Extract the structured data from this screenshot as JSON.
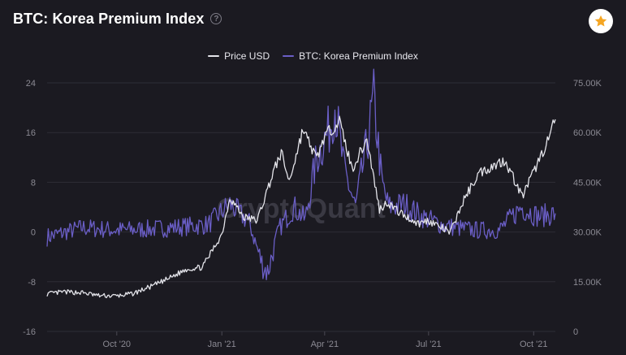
{
  "header": {
    "title": "BTC: Korea Premium Index",
    "help_icon": "question-circle-icon",
    "favorite_icon": "star-icon"
  },
  "colors": {
    "price": "#e4e4ea",
    "premium": "#6a5ec6",
    "grid": "#2e2d36",
    "star": "#f5a623"
  },
  "chart_data": {
    "type": "line",
    "title": "BTC: Korea Premium Index",
    "watermark": "CryptoQuant",
    "legend": [
      {
        "name": "Price USD",
        "color": "#e4e4ea"
      },
      {
        "name": "BTC: Korea Premium Index",
        "color": "#6a5ec6"
      }
    ],
    "x_range": [
      "2020-08-01",
      "2021-10-20"
    ],
    "x_ticks": [
      {
        "label": "Oct '20",
        "date": "2020-10-01"
      },
      {
        "label": "Jan '21",
        "date": "2021-01-01"
      },
      {
        "label": "Apr '21",
        "date": "2021-04-01"
      },
      {
        "label": "Jul '21",
        "date": "2021-07-01"
      },
      {
        "label": "Oct '21",
        "date": "2021-10-01"
      }
    ],
    "y_left": {
      "min": -16,
      "max": 24,
      "ticks": [
        "-16",
        "-8",
        "0",
        "8",
        "16",
        "24"
      ]
    },
    "y_right": {
      "min": 0,
      "max": 75000,
      "ticks": [
        "0",
        "15.00K",
        "30.00K",
        "45.00K",
        "60.00K",
        "75.00K"
      ]
    },
    "series": [
      {
        "name": "Price USD",
        "axis": "right",
        "points": [
          [
            "2020-08-01",
            11300
          ],
          [
            "2020-08-15",
            11900
          ],
          [
            "2020-09-01",
            11700
          ],
          [
            "2020-09-15",
            10800
          ],
          [
            "2020-10-01",
            10700
          ],
          [
            "2020-10-15",
            11400
          ],
          [
            "2020-11-01",
            13700
          ],
          [
            "2020-11-15",
            15900
          ],
          [
            "2020-12-01",
            18800
          ],
          [
            "2020-12-15",
            19400
          ],
          [
            "2021-01-01",
            29300
          ],
          [
            "2021-01-08",
            40500
          ],
          [
            "2021-01-20",
            34500
          ],
          [
            "2021-02-01",
            33500
          ],
          [
            "2021-02-15",
            48000
          ],
          [
            "2021-02-22",
            54000
          ],
          [
            "2021-03-01",
            45200
          ],
          [
            "2021-03-13",
            61000
          ],
          [
            "2021-03-25",
            52000
          ],
          [
            "2021-04-01",
            58900
          ],
          [
            "2021-04-14",
            63500
          ],
          [
            "2021-04-25",
            49000
          ],
          [
            "2021-05-08",
            58000
          ],
          [
            "2021-05-19",
            36800
          ],
          [
            "2021-05-26",
            39000
          ],
          [
            "2021-06-05",
            36000
          ],
          [
            "2021-06-22",
            32500
          ],
          [
            "2021-07-01",
            33500
          ],
          [
            "2021-07-20",
            29800
          ],
          [
            "2021-08-01",
            39800
          ],
          [
            "2021-08-14",
            47800
          ],
          [
            "2021-09-06",
            51700
          ],
          [
            "2021-09-21",
            40700
          ],
          [
            "2021-10-01",
            48100
          ],
          [
            "2021-10-13",
            57300
          ],
          [
            "2021-10-20",
            64000
          ]
        ]
      },
      {
        "name": "BTC: Korea Premium Index",
        "axis": "left",
        "points": [
          [
            "2020-08-01",
            -0.8
          ],
          [
            "2020-09-01",
            0.7
          ],
          [
            "2020-10-01",
            0.3
          ],
          [
            "2020-11-01",
            0.5
          ],
          [
            "2020-12-01",
            0.9
          ],
          [
            "2020-12-20",
            1.2
          ],
          [
            "2021-01-08",
            4.5
          ],
          [
            "2021-01-25",
            1.5
          ],
          [
            "2021-02-05",
            -5.0
          ],
          [
            "2021-02-10",
            -6.5
          ],
          [
            "2021-02-20",
            0.5
          ],
          [
            "2021-03-05",
            4.0
          ],
          [
            "2021-03-15",
            2.0
          ],
          [
            "2021-03-25",
            12.0
          ],
          [
            "2021-04-05",
            16.5
          ],
          [
            "2021-04-10",
            20.5
          ],
          [
            "2021-04-18",
            10.0
          ],
          [
            "2021-04-28",
            4.0
          ],
          [
            "2021-05-08",
            14.0
          ],
          [
            "2021-05-14",
            21.5
          ],
          [
            "2021-05-21",
            8.0
          ],
          [
            "2021-05-27",
            4.0
          ],
          [
            "2021-06-10",
            4.5
          ],
          [
            "2021-06-25",
            2.5
          ],
          [
            "2021-07-15",
            1.0
          ],
          [
            "2021-08-10",
            0.3
          ],
          [
            "2021-09-01",
            0.3
          ],
          [
            "2021-09-20",
            4.0
          ],
          [
            "2021-10-05",
            2.5
          ],
          [
            "2021-10-20",
            3.0
          ]
        ]
      }
    ]
  }
}
